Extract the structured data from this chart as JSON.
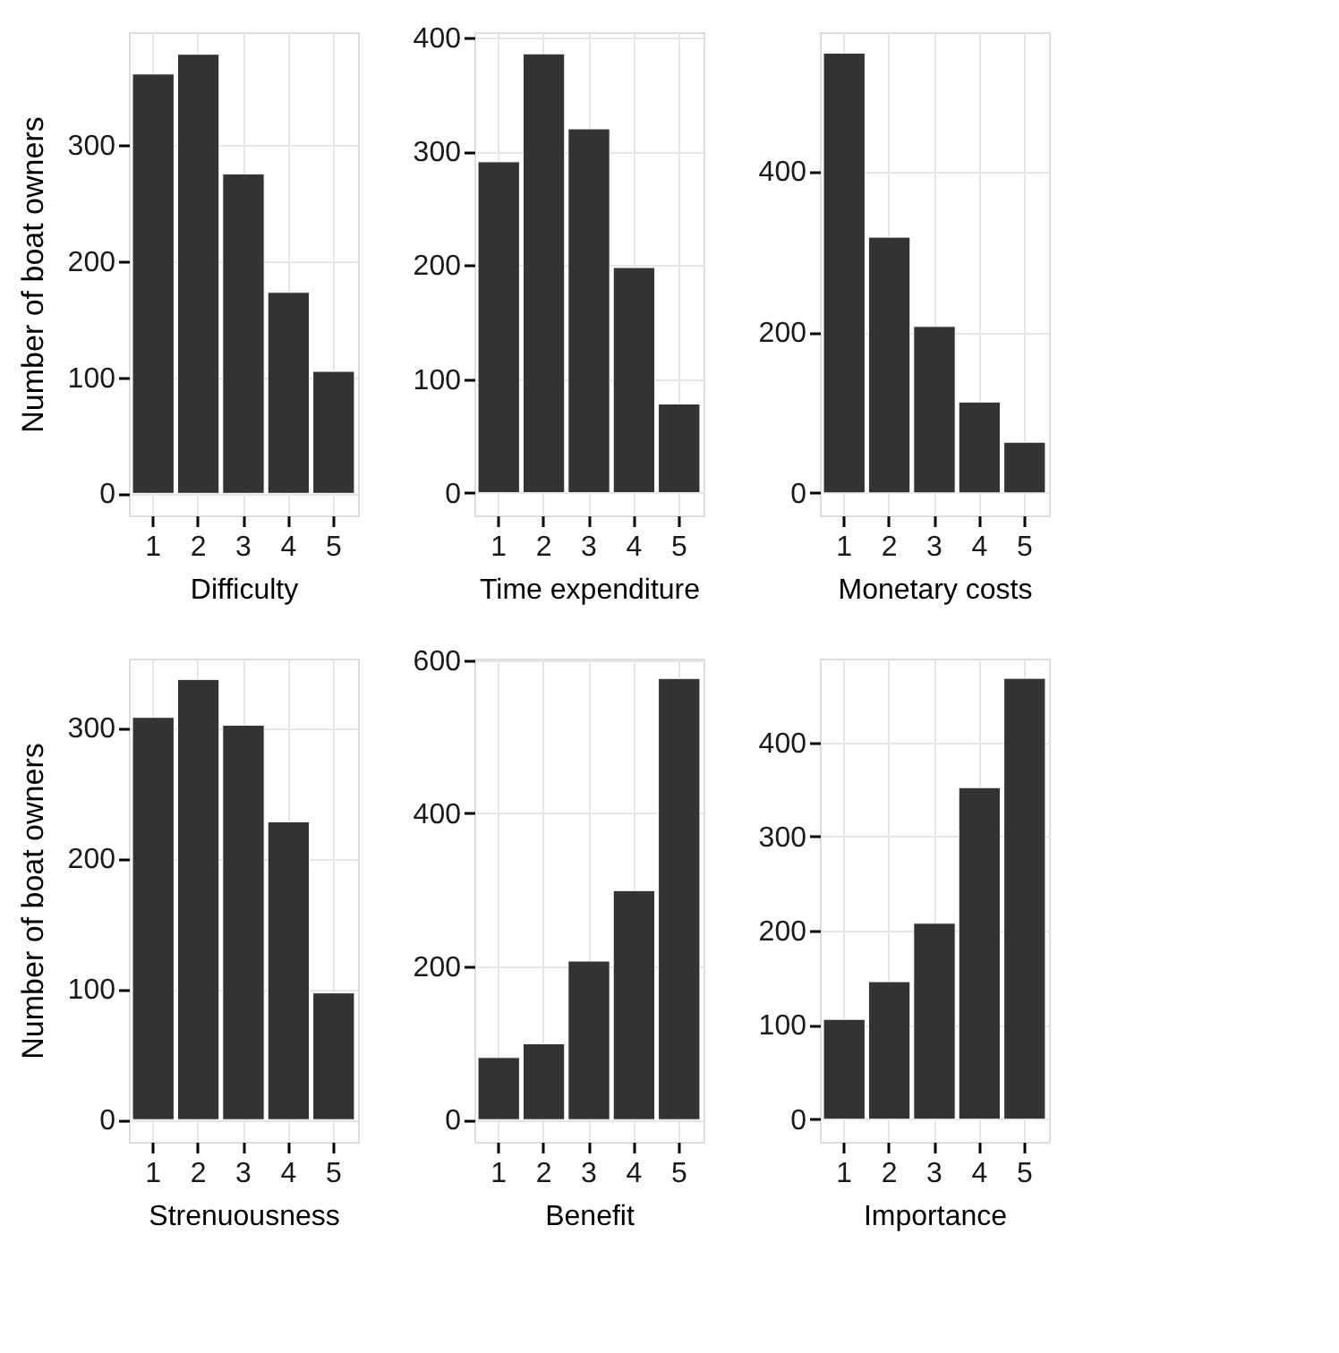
{
  "chart_data": [
    {
      "type": "bar",
      "categories": [
        "1",
        "2",
        "3",
        "4",
        "5"
      ],
      "values": [
        361,
        378,
        275,
        173,
        105
      ],
      "color": "#333333",
      "xlabel": "Difficulty",
      "ylabel": "Number of boat owners",
      "ylim": [
        -19,
        397
      ],
      "yticks": [
        0,
        100,
        200,
        300
      ],
      "grid": true
    },
    {
      "type": "bar",
      "categories": [
        "1",
        "2",
        "3",
        "4",
        "5"
      ],
      "values": [
        291,
        386,
        320,
        198,
        78
      ],
      "color": "#333333",
      "xlabel": "Time expenditure",
      "ylim": [
        -20,
        405
      ],
      "yticks": [
        0,
        100,
        200,
        300,
        400
      ],
      "grid": true
    },
    {
      "type": "bar",
      "categories": [
        "1",
        "2",
        "3",
        "4",
        "5"
      ],
      "values": [
        547,
        318,
        207,
        113,
        63
      ],
      "color": "#333333",
      "xlabel": "Monetary costs",
      "ylim": [
        -28,
        573
      ],
      "yticks": [
        0,
        200,
        400
      ],
      "grid": true
    },
    {
      "type": "bar",
      "categories": [
        "1",
        "2",
        "3",
        "4",
        "5"
      ],
      "values": [
        308,
        337,
        302,
        228,
        97
      ],
      "color": "#333333",
      "xlabel": "Strenuousness",
      "ylabel": "Number of boat owners",
      "ylim": [
        -17,
        353
      ],
      "yticks": [
        0,
        100,
        200,
        300
      ],
      "grid": true
    },
    {
      "type": "bar",
      "categories": [
        "1",
        "2",
        "3",
        "4",
        "5"
      ],
      "values": [
        81,
        99,
        207,
        299,
        576
      ],
      "color": "#333333",
      "xlabel": "Benefit",
      "ylim": [
        -29,
        602
      ],
      "yticks": [
        0,
        200,
        400,
        600
      ],
      "grid": true
    },
    {
      "type": "bar",
      "categories": [
        "1",
        "2",
        "3",
        "4",
        "5"
      ],
      "values": [
        106,
        146,
        208,
        352,
        468
      ],
      "color": "#333333",
      "xlabel": "Importance",
      "ylim": [
        -24,
        489
      ],
      "yticks": [
        0,
        100,
        200,
        300,
        400
      ],
      "grid": true
    }
  ]
}
